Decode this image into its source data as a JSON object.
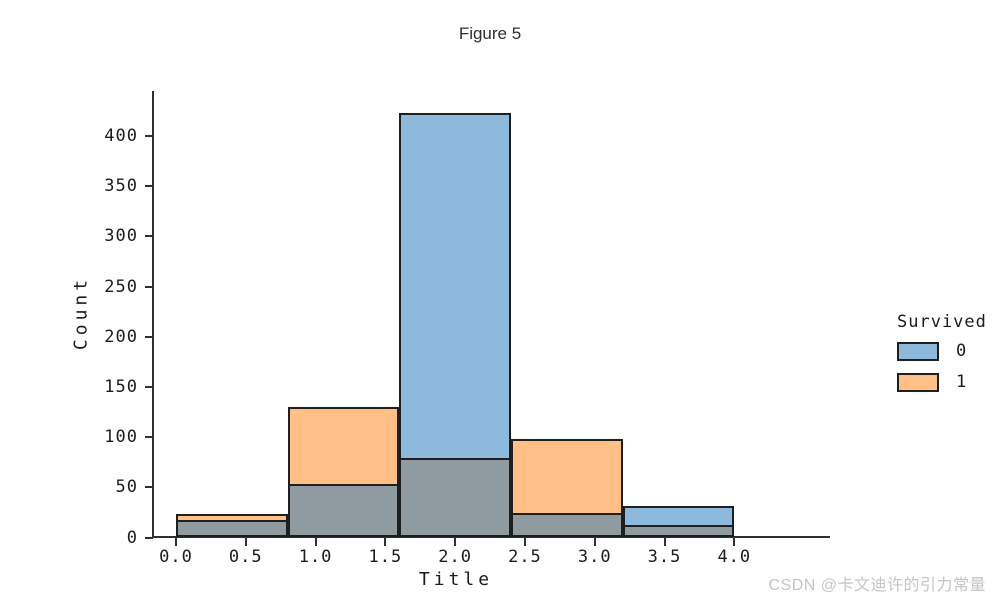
{
  "figure": {
    "title": "Figure 5"
  },
  "watermark": {
    "text": "CSDN @卡文迪许的引力常量",
    "color": "#c4c4c4"
  },
  "chart_data": {
    "type": "bar",
    "subtype": "layered-histogram",
    "title": "",
    "xlabel": "Title",
    "ylabel": "Count",
    "grid": false,
    "bin_edges": [
      0,
      0.8,
      1.6,
      2.4,
      3.2,
      4.0
    ],
    "categories": [
      0,
      1,
      2,
      3,
      4
    ],
    "series": [
      {
        "name": "0",
        "legend_label": "0",
        "color": "#8cb9dc",
        "values": [
          17,
          53,
          423,
          24,
          31
        ]
      },
      {
        "name": "1",
        "legend_label": "1",
        "color": "#ffbf87",
        "values": [
          23,
          130,
          79,
          98,
          12
        ]
      }
    ],
    "overlap_color": "#8f9aa1",
    "bar_edge_color": "#1f1f1f",
    "xlim": [
      -0.17,
      4.69
    ],
    "ylim": [
      0,
      445
    ],
    "xticks": {
      "values": [
        0,
        0.5,
        1,
        1.5,
        2,
        2.5,
        3,
        3.5,
        4
      ],
      "labels": [
        "0.0",
        "0.5",
        "1.0",
        "1.5",
        "2.0",
        "2.5",
        "3.0",
        "3.5",
        "4.0"
      ]
    },
    "yticks": {
      "values": [
        0,
        50,
        100,
        150,
        200,
        250,
        300,
        350,
        400
      ],
      "labels": [
        "0",
        "50",
        "100",
        "150",
        "200",
        "250",
        "300",
        "350",
        "400"
      ]
    },
    "legend": {
      "title": "Survived",
      "position": "right-outside",
      "entries": [
        {
          "label": "0",
          "color": "#8cb9dc"
        },
        {
          "label": "1",
          "color": "#ffbf87"
        }
      ]
    }
  }
}
